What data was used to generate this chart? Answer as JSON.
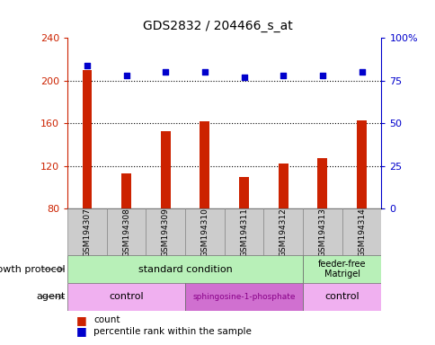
{
  "title": "GDS2832 / 204466_s_at",
  "samples": [
    "GSM194307",
    "GSM194308",
    "GSM194309",
    "GSM194310",
    "GSM194311",
    "GSM194312",
    "GSM194313",
    "GSM194314"
  ],
  "counts": [
    210,
    113,
    153,
    162,
    110,
    122,
    127,
    163
  ],
  "percentile_ranks": [
    84,
    78,
    80,
    80,
    77,
    78,
    78,
    80
  ],
  "ylim_left": [
    80,
    240
  ],
  "ylim_right": [
    0,
    100
  ],
  "yticks_left": [
    80,
    120,
    160,
    200,
    240
  ],
  "yticks_right": [
    0,
    25,
    50,
    75,
    100
  ],
  "yticklabels_right": [
    "0",
    "25",
    "50",
    "75",
    "100%"
  ],
  "bar_color": "#cc2200",
  "dot_color": "#0000cc",
  "bar_bottom": 80,
  "bar_width": 0.25,
  "growth_protocol_segments": [
    {
      "text": "standard condition",
      "start": 0,
      "end": 6,
      "color": "#b8f0b8"
    },
    {
      "text": "feeder-free\nMatrigel",
      "start": 6,
      "end": 8,
      "color": "#b8f0b8"
    }
  ],
  "agent_segments": [
    {
      "text": "control",
      "start": 0,
      "end": 3,
      "color": "#f0b0f0"
    },
    {
      "text": "sphingosine-1-phosphate",
      "start": 3,
      "end": 6,
      "color": "#d070d0"
    },
    {
      "text": "control",
      "start": 6,
      "end": 8,
      "color": "#f0b0f0"
    }
  ],
  "growth_protocol_label": "growth protocol",
  "agent_label": "agent",
  "legend_count_label": "count",
  "legend_pct_label": "percentile rank within the sample",
  "sample_box_color": "#cccccc",
  "grid_color": "black",
  "grid_style": ":",
  "grid_lw": 0.8
}
